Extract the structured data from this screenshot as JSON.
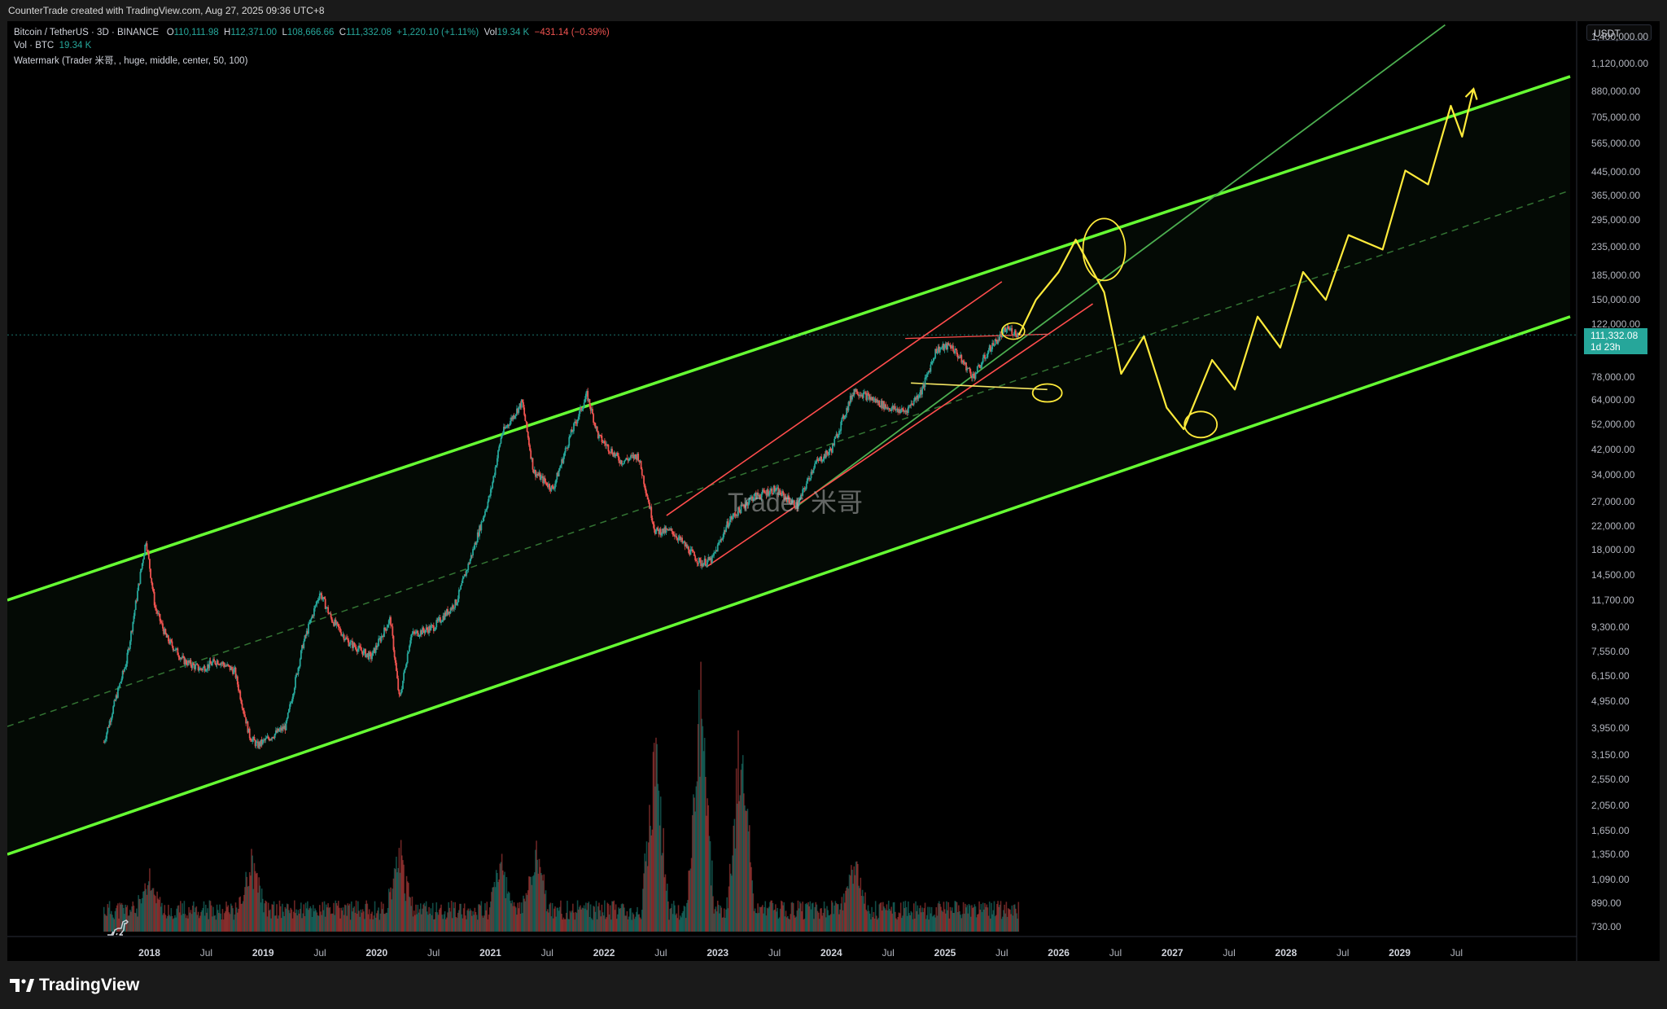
{
  "header": {
    "caption": "CounterTrade created with TradingView.com, Aug 27, 2025 09:36 UTC+8"
  },
  "legend": {
    "symbol": "Bitcoin / TetherUS · 3D · BINANCE",
    "open_label": "O",
    "open": "110,111.98",
    "high_label": "H",
    "high": "112,371.00",
    "low_label": "L",
    "low": "108,666.66",
    "close_label": "C",
    "close": "111,332.08",
    "change": "+1,220.10 (+1.11%)",
    "vol_label": "Vol",
    "vol_value": "19.34 K",
    "vol_change": "−431.14 (−0.39%)",
    "vol_row_label": "Vol · BTC",
    "vol_row_value": "19.34 K",
    "watermark_row": "Watermark (Trader 米哥, , huge, middle, center, 50, 100)"
  },
  "currency": "USDT",
  "watermark_text": "Trader 米哥",
  "last_price": {
    "value": "111,332.08",
    "countdown": "1d 23h"
  },
  "footer": {
    "brand": "TradingView"
  },
  "colors": {
    "channel": "#66ff33",
    "up": "#26a69a",
    "down": "#ef5350",
    "drawing_yellow": "#ffeb3b",
    "drawing_red": "#ff4d4d",
    "background": "#000000"
  },
  "chart_data": {
    "type": "candlestick",
    "scale": "log",
    "y_tick_labels": [
      "1,400,000.00",
      "1,120,000.00",
      "880,000.00",
      "705,000.00",
      "565,000.00",
      "445,000.00",
      "365,000.00",
      "295,000.00",
      "235,000.00",
      "185,000.00",
      "150,000.00",
      "122,000.00",
      "78,000.00",
      "64,000.00",
      "52,000.00",
      "42,000.00",
      "34,000.00",
      "27,000.00",
      "22,000.00",
      "18,000.00",
      "14,500.00",
      "11,700.00",
      "9,300.00",
      "7,550.00",
      "6,150.00",
      "4,950.00",
      "3,950.00",
      "3,150.00",
      "2,550.00",
      "2,050.00",
      "1,650.00",
      "1,350.00",
      "1,090.00",
      "890.00",
      "730.00"
    ],
    "y_ticks": [
      1400000,
      1120000,
      880000,
      705000,
      565000,
      445000,
      365000,
      295000,
      235000,
      185000,
      150000,
      122000,
      78000,
      64000,
      52000,
      42000,
      34000,
      27000,
      22000,
      18000,
      14500,
      11700,
      9300,
      7550,
      6150,
      4950,
      3950,
      3150,
      2550,
      2050,
      1650,
      1350,
      1090,
      890,
      730
    ],
    "ylim": [
      700,
      1600000
    ],
    "x_ticks": [
      {
        "label": "2018",
        "t": 2018.0,
        "year": true
      },
      {
        "label": "Jul",
        "t": 2018.5
      },
      {
        "label": "2019",
        "t": 2019.0,
        "year": true
      },
      {
        "label": "Jul",
        "t": 2019.5
      },
      {
        "label": "2020",
        "t": 2020.0,
        "year": true
      },
      {
        "label": "Jul",
        "t": 2020.5
      },
      {
        "label": "2021",
        "t": 2021.0,
        "year": true
      },
      {
        "label": "Jul",
        "t": 2021.5
      },
      {
        "label": "2022",
        "t": 2022.0,
        "year": true
      },
      {
        "label": "Jul",
        "t": 2022.5
      },
      {
        "label": "2023",
        "t": 2023.0,
        "year": true
      },
      {
        "label": "Jul",
        "t": 2023.5
      },
      {
        "label": "2024",
        "t": 2024.0,
        "year": true
      },
      {
        "label": "Jul",
        "t": 2024.5
      },
      {
        "label": "2025",
        "t": 2025.0,
        "year": true
      },
      {
        "label": "Jul",
        "t": 2025.5
      },
      {
        "label": "2026",
        "t": 2026.0,
        "year": true
      },
      {
        "label": "Jul",
        "t": 2026.5
      },
      {
        "label": "2027",
        "t": 2027.0,
        "year": true
      },
      {
        "label": "Jul",
        "t": 2027.5
      },
      {
        "label": "2028",
        "t": 2028.0,
        "year": true
      },
      {
        "label": "Jul",
        "t": 2028.5
      },
      {
        "label": "2029",
        "t": 2029.0,
        "year": true
      },
      {
        "label": "Jul",
        "t": 2029.5
      }
    ],
    "xlim": [
      2016.75,
      2030.5
    ],
    "price_path": [
      [
        2017.6,
        3500
      ],
      [
        2017.7,
        5000
      ],
      [
        2017.8,
        7000
      ],
      [
        2017.92,
        14500
      ],
      [
        2017.97,
        19500
      ],
      [
        2018.05,
        11000
      ],
      [
        2018.15,
        8500
      ],
      [
        2018.3,
        7000
      ],
      [
        2018.45,
        6500
      ],
      [
        2018.6,
        7000
      ],
      [
        2018.75,
        6400
      ],
      [
        2018.88,
        3700
      ],
      [
        2018.95,
        3400
      ],
      [
        2019.2,
        4000
      ],
      [
        2019.35,
        8000
      ],
      [
        2019.5,
        12500
      ],
      [
        2019.6,
        10000
      ],
      [
        2019.75,
        8200
      ],
      [
        2019.95,
        7200
      ],
      [
        2020.12,
        10000
      ],
      [
        2020.2,
        5000
      ],
      [
        2020.3,
        8700
      ],
      [
        2020.5,
        9300
      ],
      [
        2020.7,
        11500
      ],
      [
        2020.85,
        18000
      ],
      [
        2021.0,
        29000
      ],
      [
        2021.1,
        48000
      ],
      [
        2021.28,
        63000
      ],
      [
        2021.38,
        35000
      ],
      [
        2021.55,
        30000
      ],
      [
        2021.7,
        47000
      ],
      [
        2021.85,
        67000
      ],
      [
        2021.95,
        47000
      ],
      [
        2022.15,
        38000
      ],
      [
        2022.3,
        40000
      ],
      [
        2022.45,
        21000
      ],
      [
        2022.6,
        21000
      ],
      [
        2022.85,
        16000
      ],
      [
        2022.95,
        16500
      ],
      [
        2023.1,
        23000
      ],
      [
        2023.3,
        28000
      ],
      [
        2023.5,
        30000
      ],
      [
        2023.7,
        26000
      ],
      [
        2023.85,
        37000
      ],
      [
        2024.0,
        42000
      ],
      [
        2024.2,
        70000
      ],
      [
        2024.5,
        60000
      ],
      [
        2024.65,
        58000
      ],
      [
        2024.8,
        70000
      ],
      [
        2024.92,
        98000
      ],
      [
        2025.05,
        102000
      ],
      [
        2025.25,
        78000
      ],
      [
        2025.4,
        100000
      ],
      [
        2025.55,
        118000
      ],
      [
        2025.65,
        111332
      ]
    ],
    "volume_spikes": [
      [
        2018.0,
        900
      ],
      [
        2018.9,
        1300
      ],
      [
        2020.2,
        1700
      ],
      [
        2021.1,
        1500
      ],
      [
        2021.4,
        1600
      ],
      [
        2022.45,
        4800
      ],
      [
        2022.85,
        6000
      ],
      [
        2023.2,
        5200
      ],
      [
        2024.2,
        1700
      ]
    ],
    "channel": {
      "upper": [
        [
          2016.75,
          11700
        ],
        [
          2030.5,
          1000000
        ]
      ],
      "lower": [
        [
          2016.75,
          1350
        ],
        [
          2030.5,
          130000
        ]
      ],
      "median": [
        [
          2016.75,
          4000
        ],
        [
          2030.5,
          380000
        ]
      ]
    },
    "projection": [
      [
        2025.65,
        111332
      ],
      [
        2025.8,
        150000
      ],
      [
        2026.0,
        190000
      ],
      [
        2026.15,
        250000
      ],
      [
        2026.4,
        160000
      ],
      [
        2026.55,
        80000
      ],
      [
        2026.75,
        110000
      ],
      [
        2026.95,
        60000
      ],
      [
        2027.1,
        50000
      ],
      [
        2027.35,
        90000
      ],
      [
        2027.55,
        70000
      ],
      [
        2027.75,
        130000
      ],
      [
        2027.95,
        100000
      ],
      [
        2028.15,
        190000
      ],
      [
        2028.35,
        150000
      ],
      [
        2028.55,
        260000
      ],
      [
        2028.85,
        230000
      ],
      [
        2029.05,
        450000
      ],
      [
        2029.25,
        400000
      ],
      [
        2029.45,
        780000
      ],
      [
        2029.55,
        600000
      ],
      [
        2029.65,
        900000
      ]
    ]
  }
}
